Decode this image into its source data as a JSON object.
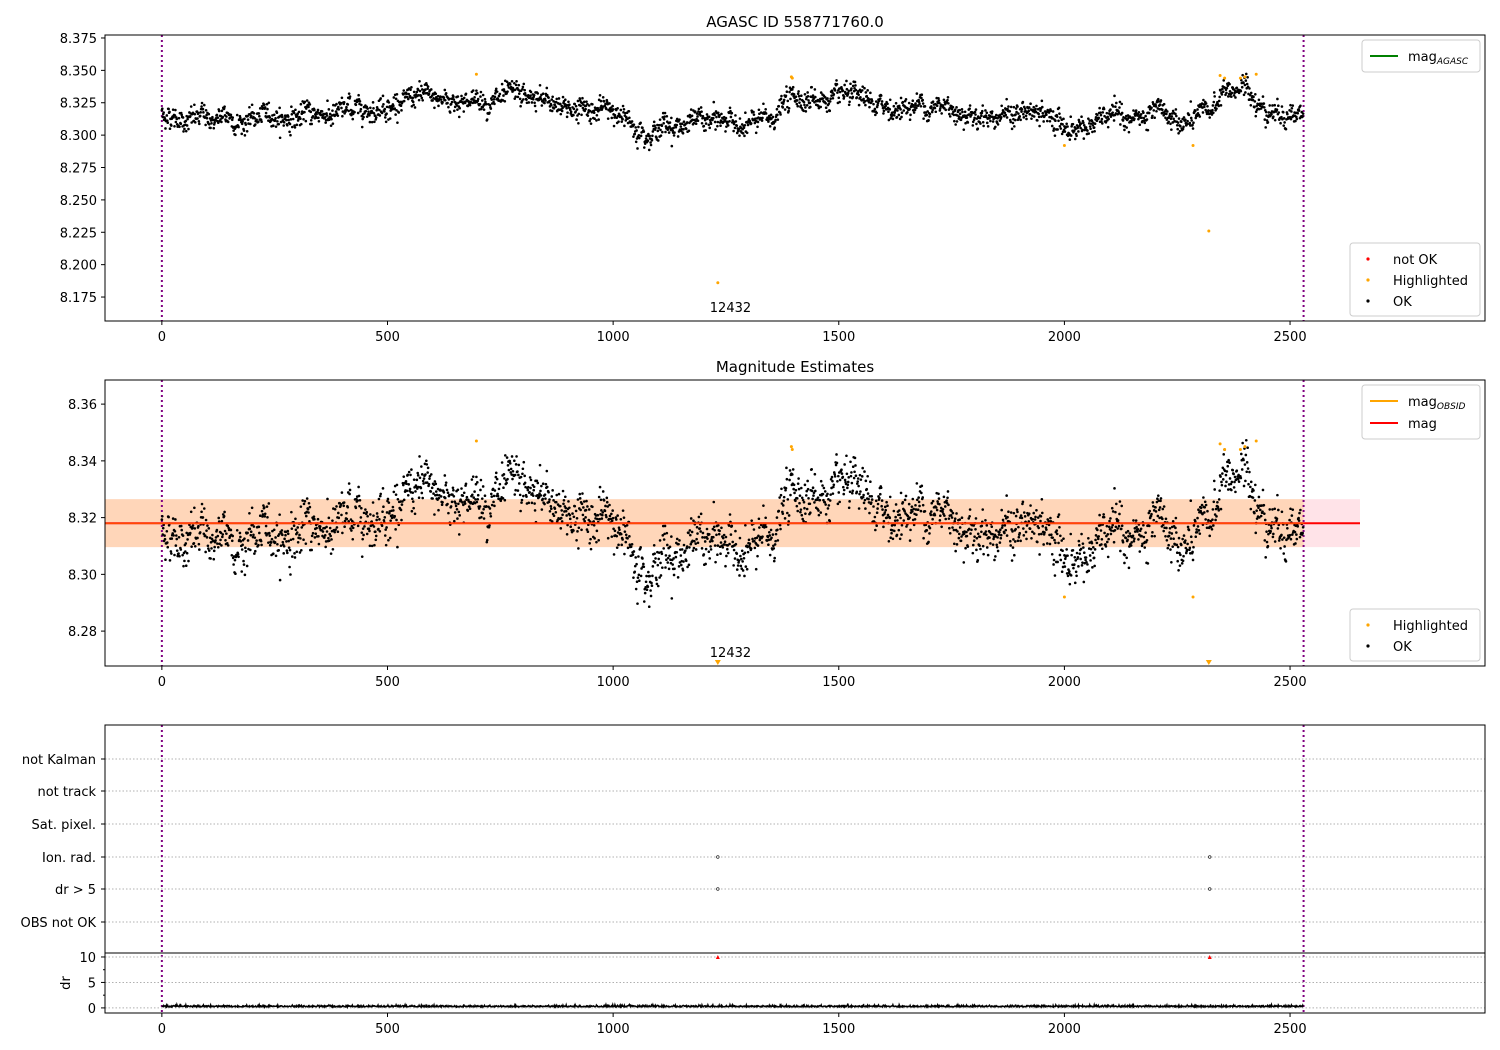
{
  "chart_data": [
    {
      "type": "scatter",
      "title": "AGASC ID 558771760.0",
      "xlim": [
        -126,
        2932
      ],
      "ylim": [
        8.1565,
        8.3773
      ],
      "xticks": [
        0,
        500,
        1000,
        1500,
        2000,
        2500
      ],
      "yticks": [
        8.175,
        8.2,
        8.225,
        8.25,
        8.275,
        8.3,
        8.325,
        8.35,
        8.375
      ],
      "ytick_labels": [
        "8.175",
        "8.200",
        "8.225",
        "8.250",
        "8.275",
        "8.300",
        "8.325",
        "8.350",
        "8.375"
      ],
      "legend_lines": [
        {
          "label": "mag",
          "sub": "AGASC",
          "color": "#008000"
        }
      ],
      "legend_points": [
        {
          "label": "not OK",
          "color": "#ff0000"
        },
        {
          "label": "Highlighted",
          "color": "#ffa500"
        },
        {
          "label": "OK",
          "color": "#000000"
        }
      ],
      "annotation": {
        "text": "12432",
        "x": 1260
      }
    },
    {
      "type": "scatter",
      "title": "Magnitude Estimates",
      "xlim": [
        -126,
        2932
      ],
      "ylim": [
        8.2677,
        8.3685
      ],
      "xticks": [
        0,
        500,
        1000,
        1500,
        2000,
        2500
      ],
      "yticks": [
        8.28,
        8.3,
        8.32,
        8.34,
        8.36
      ],
      "ytick_labels": [
        "8.28",
        "8.30",
        "8.32",
        "8.34",
        "8.36"
      ],
      "mag": 8.318,
      "mag_band": [
        8.3096,
        8.3265
      ],
      "legend_lines": [
        {
          "label": "mag",
          "sub": "OBSID",
          "color": "#ffa500"
        },
        {
          "label": "mag",
          "sub": "",
          "color": "#ff0000"
        }
      ],
      "legend_points": [
        {
          "label": "Highlighted",
          "color": "#ffa500"
        },
        {
          "label": "OK",
          "color": "#000000"
        }
      ],
      "annotation": {
        "text": "12432",
        "x": 1260
      }
    },
    {
      "type": "scatter",
      "flags": [
        "not Kalman",
        "not track",
        "Sat. pixel.",
        "Ion. rad.",
        "dr > 5",
        "OBS not OK"
      ],
      "flag_points": [
        {
          "flag": "Ion. rad.",
          "x": [
            1232,
            2322
          ]
        },
        {
          "flag": "dr > 5",
          "x": [
            1232,
            2322
          ]
        }
      ],
      "dr_ylabel": "dr",
      "dr_yticks": [
        0,
        5,
        10
      ],
      "dr_ylim": [
        -1,
        10.78
      ],
      "dr_outliers_x": [
        1232,
        2322
      ],
      "xticks": [
        0,
        500,
        1000,
        1500,
        2000,
        2500
      ]
    }
  ],
  "series": {
    "n_points": 2530,
    "noise_sd": 0.0048,
    "trend": [
      [
        0,
        8.316
      ],
      [
        150,
        8.311
      ],
      [
        300,
        8.315
      ],
      [
        400,
        8.318
      ],
      [
        500,
        8.326
      ],
      [
        700,
        8.328
      ],
      [
        900,
        8.323
      ],
      [
        1000,
        8.318
      ],
      [
        1050,
        8.307
      ],
      [
        1200,
        8.31
      ],
      [
        1350,
        8.31
      ],
      [
        1380,
        8.325
      ],
      [
        1420,
        8.33
      ],
      [
        1600,
        8.32
      ],
      [
        1700,
        8.324
      ],
      [
        1800,
        8.318
      ],
      [
        1950,
        8.315
      ],
      [
        2000,
        8.305
      ],
      [
        2100,
        8.312
      ],
      [
        2200,
        8.312
      ],
      [
        2270,
        8.308
      ],
      [
        2320,
        8.315
      ],
      [
        2350,
        8.333
      ],
      [
        2400,
        8.336
      ],
      [
        2450,
        8.32
      ],
      [
        2530,
        8.319
      ]
    ],
    "highlighted": [
      [
        697,
        8.347
      ],
      [
        1395,
        8.345
      ],
      [
        1397,
        8.344
      ],
      [
        2000,
        8.292
      ],
      [
        2285,
        8.292
      ],
      [
        2320,
        8.226
      ],
      [
        1232,
        8.186
      ],
      [
        2345,
        8.346
      ],
      [
        2355,
        8.344
      ],
      [
        2390,
        8.344
      ],
      [
        2400,
        8.345
      ],
      [
        2425,
        8.347
      ]
    ],
    "obs_range": [
      0,
      2530
    ]
  }
}
